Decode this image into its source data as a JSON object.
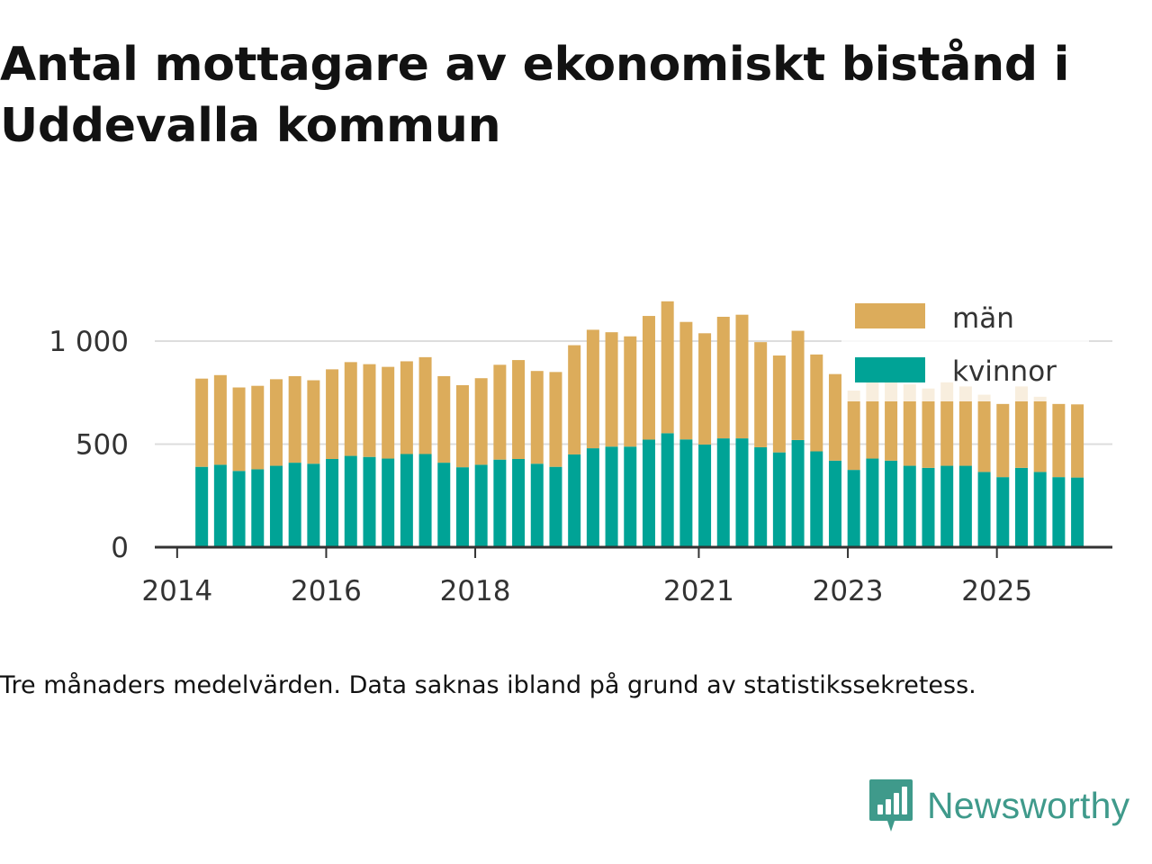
{
  "title": "Antal mottagare av ekonomiskt bistånd i Uddevalla kommun",
  "footnote": "Tre månaders medelvärden. Data saknas ibland på grund av statistikssekretess.",
  "brand": {
    "name": "Newsworthy",
    "icon": "newsworthy-logo-icon",
    "color": "#3f9a8b"
  },
  "colors": {
    "kvinnor": "#00a396",
    "man": "#dcac5b",
    "grid": "#dddddd",
    "axis": "#333333"
  },
  "chart_data": {
    "type": "bar",
    "stacked": true,
    "title": "Antal mottagare av ekonomiskt bistånd i Uddevalla kommun",
    "xlabel": "",
    "ylabel": "",
    "ylim": [
      0,
      1250
    ],
    "yticks": [
      {
        "value": 0,
        "label": "0"
      },
      {
        "value": 500,
        "label": "500"
      },
      {
        "value": 1000,
        "label": "1 000"
      }
    ],
    "x_axis_range": [
      2013.7,
      2026.55
    ],
    "xticks": [
      {
        "value": 2014,
        "label": "2014"
      },
      {
        "value": 2016,
        "label": "2016"
      },
      {
        "value": 2018,
        "label": "2018"
      },
      {
        "value": 2021,
        "label": "2021"
      },
      {
        "value": 2023,
        "label": "2023"
      },
      {
        "value": 2025,
        "label": "2025"
      }
    ],
    "grid": true,
    "legend_position": "top-right",
    "periods": [
      "2014 Q2",
      "2014 Q3",
      "2014 Q4",
      "2015 Q1",
      "2015 Q2",
      "2015 Q3",
      "2015 Q4",
      "2016 Q1",
      "2016 Q2",
      "2016 Q3",
      "2016 Q4",
      "2017 Q1",
      "2017 Q2",
      "2017 Q3",
      "2017 Q4",
      "2018 Q1",
      "2018 Q2",
      "2018 Q3",
      "2018 Q4",
      "2019 Q1",
      "2019 Q2",
      "2019 Q3",
      "2019 Q4",
      "2020 Q1",
      "2020 Q2",
      "2020 Q3",
      "2020 Q4",
      "2021 Q1",
      "2021 Q2",
      "2021 Q3",
      "2021 Q4",
      "2022 Q1",
      "2022 Q2",
      "2022 Q3",
      "2022 Q4",
      "2023 Q1",
      "2023 Q2",
      "2023 Q3",
      "2023 Q4",
      "2024 Q1",
      "2024 Q2",
      "2024 Q3",
      "2024 Q4",
      "2025 Q1",
      "2025 Q2",
      "2025 Q3",
      "2025 Q4",
      "2026 Q1"
    ],
    "x": [
      2014.33,
      2014.58,
      2014.83,
      2015.08,
      2015.33,
      2015.58,
      2015.83,
      2016.08,
      2016.33,
      2016.58,
      2016.83,
      2017.08,
      2017.33,
      2017.58,
      2017.83,
      2018.08,
      2018.33,
      2018.58,
      2018.83,
      2019.08,
      2019.33,
      2019.58,
      2019.83,
      2020.08,
      2020.33,
      2020.58,
      2020.83,
      2021.08,
      2021.33,
      2021.58,
      2021.83,
      2022.08,
      2022.33,
      2022.58,
      2022.83,
      2023.08,
      2023.33,
      2023.58,
      2023.83,
      2024.08,
      2024.33,
      2024.58,
      2024.83,
      2025.08,
      2025.33,
      2025.58,
      2025.83,
      2026.08
    ],
    "series": [
      {
        "name": "kvinnor",
        "color": "#00a396",
        "values": [
          390,
          400,
          370,
          378,
          395,
          410,
          405,
          428,
          443,
          438,
          430,
          452,
          452,
          410,
          388,
          400,
          425,
          428,
          405,
          390,
          450,
          480,
          488,
          488,
          522,
          553,
          523,
          498,
          528,
          528,
          485,
          460,
          520,
          465,
          420,
          375,
          430,
          420,
          395,
          385,
          395,
          395,
          365,
          340,
          385,
          365,
          340,
          338
        ]
      },
      {
        "name": "män",
        "color": "#dcac5b",
        "values": [
          428,
          435,
          405,
          405,
          420,
          420,
          405,
          435,
          455,
          450,
          445,
          450,
          470,
          420,
          398,
          420,
          460,
          480,
          450,
          460,
          530,
          575,
          555,
          535,
          600,
          640,
          570,
          540,
          590,
          600,
          510,
          470,
          530,
          470,
          420,
          385,
          420,
          420,
          395,
          385,
          405,
          385,
          375,
          355,
          395,
          365,
          355,
          355
        ]
      }
    ]
  }
}
